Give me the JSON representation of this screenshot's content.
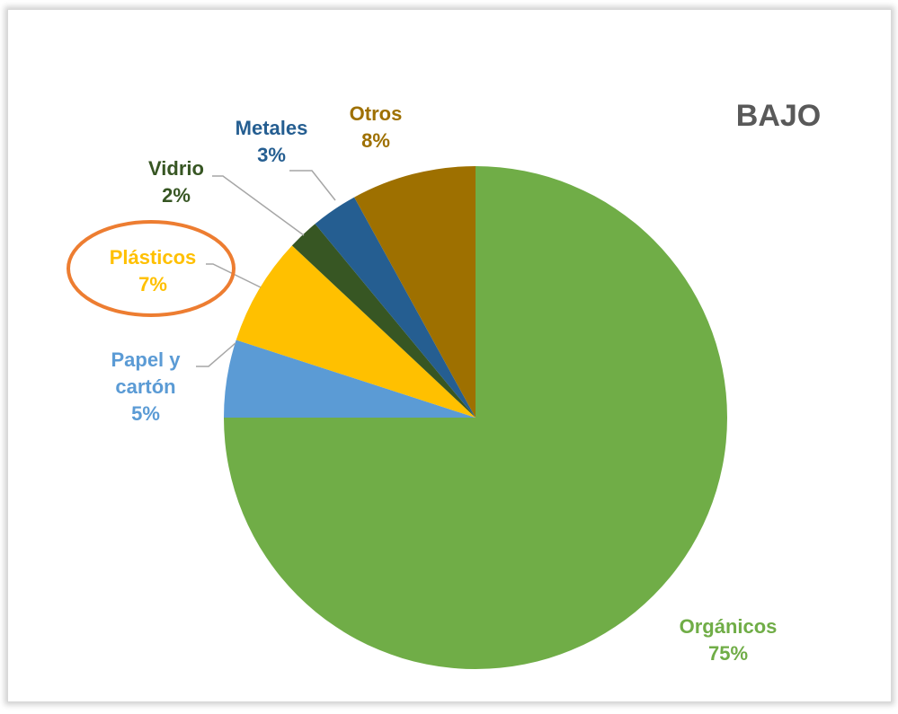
{
  "chart_data": {
    "type": "pie",
    "title": "BAJO",
    "start_angle_deg": 0,
    "direction": "clockwise",
    "slices": [
      {
        "label": "Orgánicos",
        "value": 75,
        "value_label": "75%",
        "color": "#70ad47"
      },
      {
        "label": "Papel y cartón",
        "label_lines": [
          "Papel y",
          "cartón"
        ],
        "value": 5,
        "value_label": "5%",
        "color": "#5b9bd5"
      },
      {
        "label": "Plásticos",
        "value": 7,
        "value_label": "7%",
        "color": "#ffc000",
        "highlighted": true
      },
      {
        "label": "Vidrio",
        "value": 2,
        "value_label": "2%",
        "color": "#375623"
      },
      {
        "label": "Metales",
        "value": 3,
        "value_label": "3%",
        "color": "#255e91"
      },
      {
        "label": "Otros",
        "value": 8,
        "value_label": "8%",
        "color": "#9e7000"
      }
    ],
    "highlight_color": "#ed7d31",
    "legend": "none"
  }
}
